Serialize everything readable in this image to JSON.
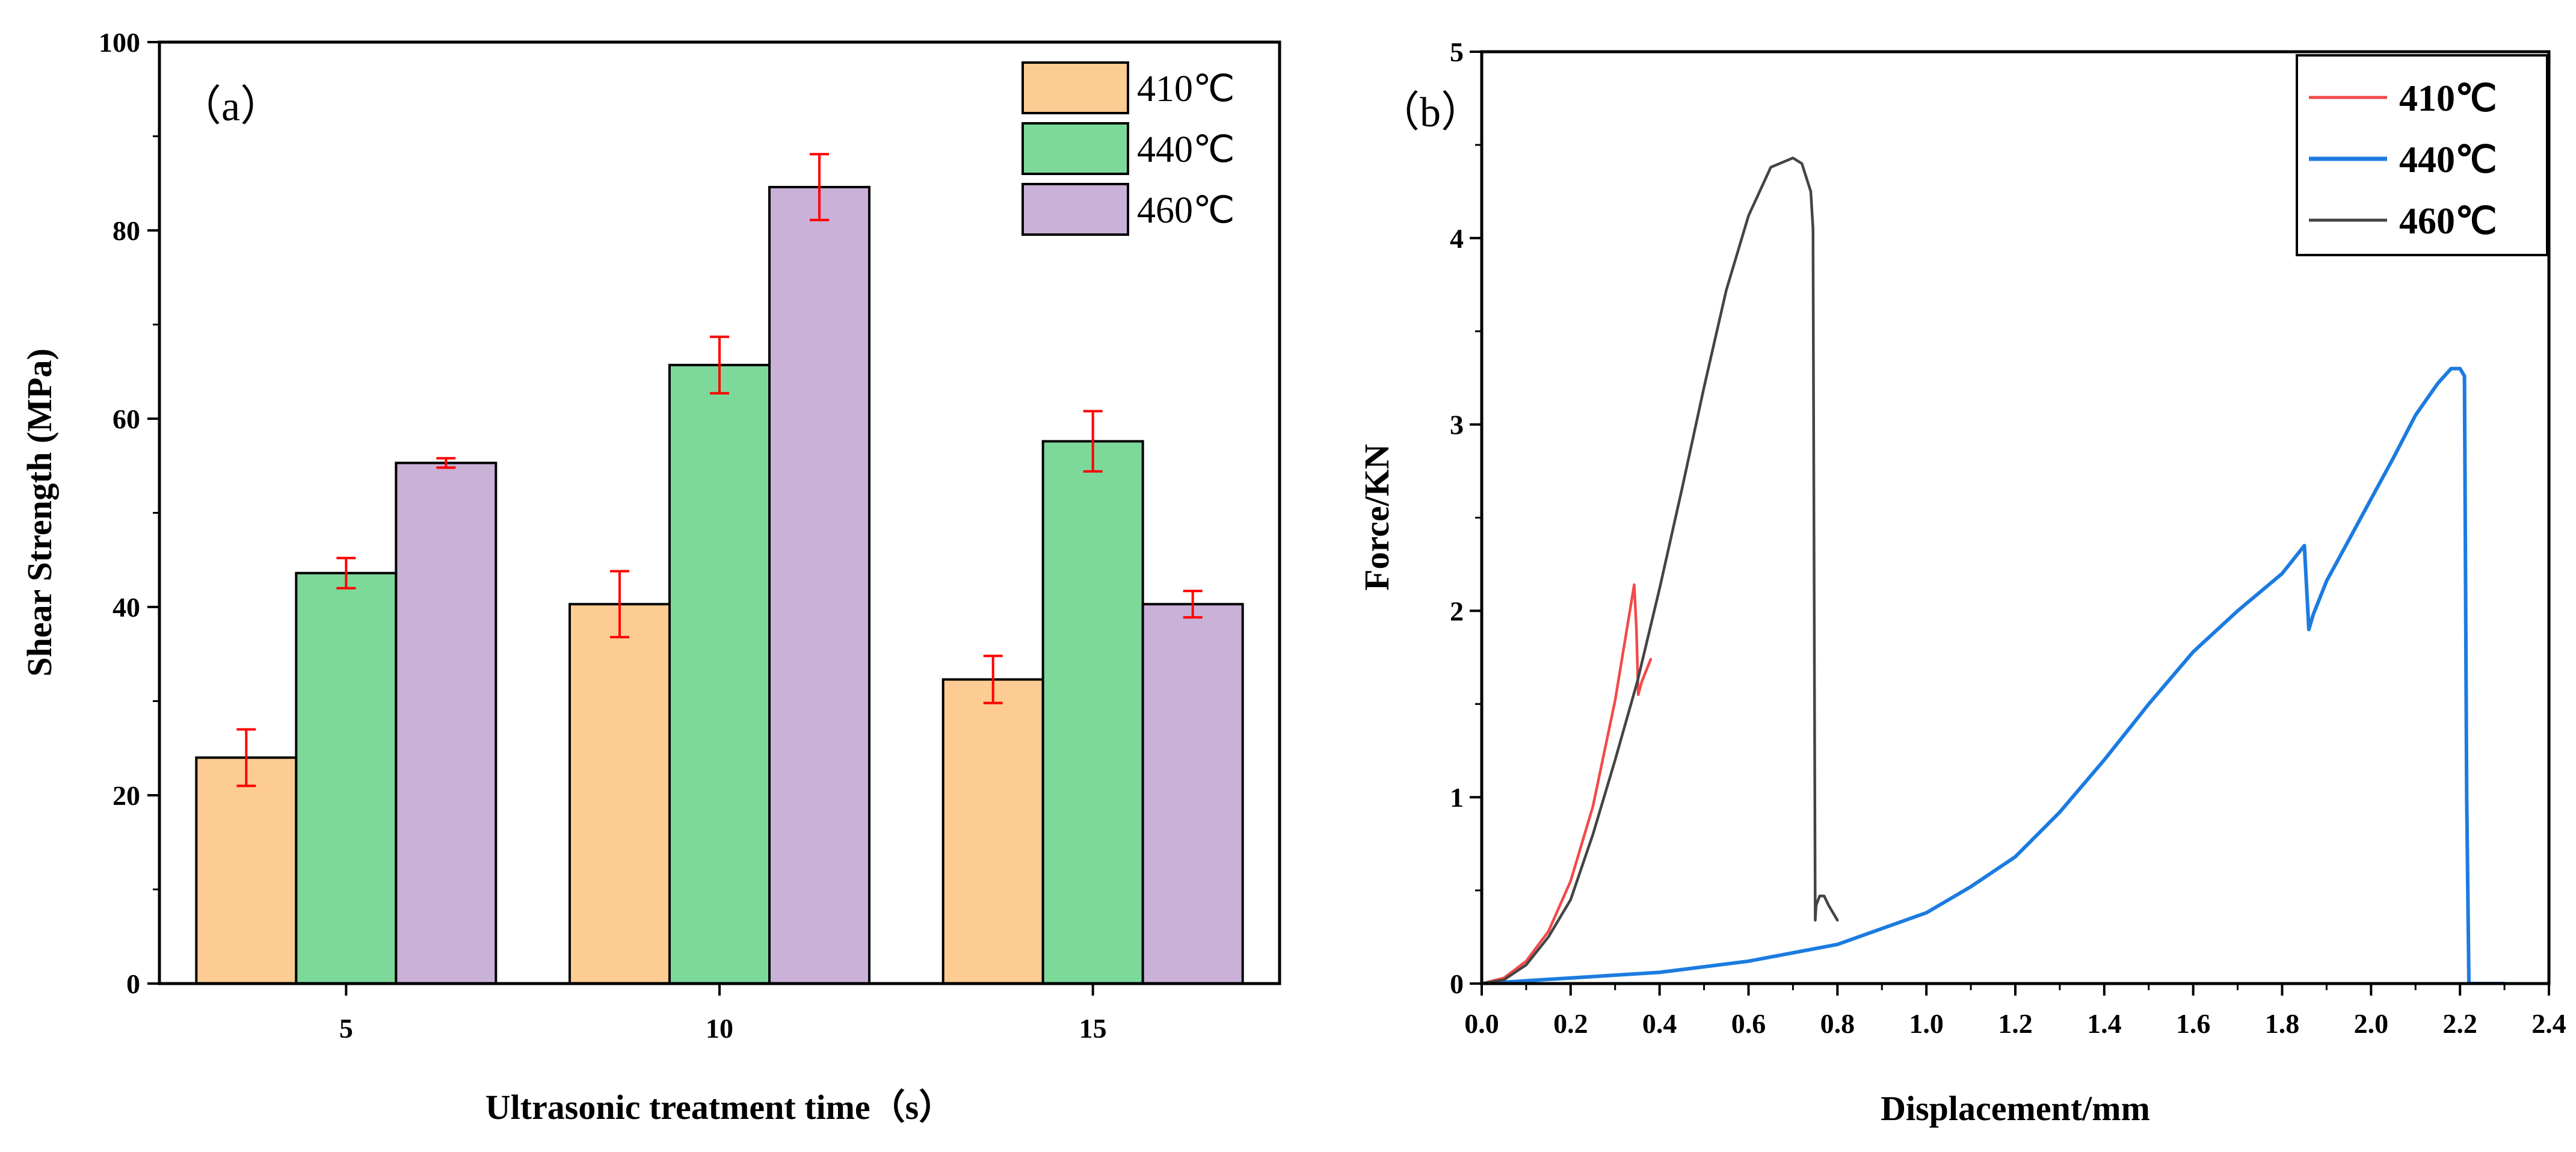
{
  "chart_data": [
    {
      "type": "bar",
      "panel_label": "（a）",
      "title": "",
      "xlabel": "Ultrasonic treatment time（s）",
      "ylabel": "Shear Strength (MPa)",
      "categories": [
        "5",
        "10",
        "15"
      ],
      "ylim": [
        0,
        100
      ],
      "yticks": [
        0,
        20,
        40,
        60,
        80,
        100
      ],
      "series": [
        {
          "name": "410℃",
          "color": "#FCCC92",
          "values": [
            24.0,
            40.3,
            32.3
          ],
          "errors": [
            3.0,
            3.5,
            2.5
          ]
        },
        {
          "name": "440℃",
          "color": "#7DD99A",
          "values": [
            43.6,
            65.7,
            57.6
          ],
          "errors": [
            1.6,
            3.0,
            3.2
          ]
        },
        {
          "name": "460℃",
          "color": "#C9B1D7",
          "values": [
            55.3,
            84.6,
            40.3
          ],
          "errors": [
            0.5,
            3.5,
            1.4
          ]
        }
      ],
      "error_color": "#FF0000",
      "legend_position": "top-right"
    },
    {
      "type": "line",
      "panel_label": "（b）",
      "title": "",
      "xlabel": "Displacement/mm",
      "ylabel": "Force/KN",
      "xlim": [
        0,
        2.4
      ],
      "ylim": [
        0,
        5
      ],
      "xticks": [
        "0.0",
        "0.2",
        "0.4",
        "0.6",
        "0.8",
        "1.0",
        "1.2",
        "1.4",
        "1.6",
        "1.8",
        "2.0",
        "2.2",
        "2.4"
      ],
      "yticks": [
        "0",
        "1",
        "2",
        "3",
        "4",
        "5"
      ],
      "legend_position": "top-right",
      "series": [
        {
          "name": "410℃",
          "color": "#F24A4A",
          "x": [
            0.0,
            0.05,
            0.1,
            0.15,
            0.2,
            0.25,
            0.3,
            0.343,
            0.348,
            0.352,
            0.36,
            0.37,
            0.38
          ],
          "y": [
            0.0,
            0.03,
            0.12,
            0.28,
            0.55,
            0.95,
            1.52,
            2.14,
            1.9,
            1.55,
            1.62,
            1.68,
            1.74
          ]
        },
        {
          "name": "440℃",
          "color": "#1C7BE0",
          "x": [
            0.0,
            0.2,
            0.4,
            0.6,
            0.8,
            1.0,
            1.1,
            1.2,
            1.3,
            1.4,
            1.5,
            1.6,
            1.7,
            1.8,
            1.85,
            1.86,
            1.87,
            1.9,
            1.95,
            2.0,
            2.05,
            2.1,
            2.15,
            2.18,
            2.2,
            2.21,
            2.215,
            2.22,
            2.3
          ],
          "y": [
            0.0,
            0.03,
            0.06,
            0.12,
            0.21,
            0.38,
            0.52,
            0.68,
            0.92,
            1.2,
            1.5,
            1.78,
            2.0,
            2.2,
            2.35,
            1.9,
            1.98,
            2.16,
            2.38,
            2.6,
            2.82,
            3.05,
            3.22,
            3.3,
            3.3,
            3.26,
            1.0,
            0.0,
            0.0
          ]
        },
        {
          "name": "460℃",
          "color": "#444444",
          "x": [
            0.0,
            0.05,
            0.1,
            0.15,
            0.2,
            0.25,
            0.3,
            0.35,
            0.4,
            0.45,
            0.5,
            0.55,
            0.6,
            0.65,
            0.7,
            0.72,
            0.74,
            0.745,
            0.75,
            0.752,
            0.76,
            0.77,
            0.78,
            0.8
          ],
          "y": [
            0.0,
            0.02,
            0.1,
            0.25,
            0.45,
            0.8,
            1.2,
            1.62,
            2.12,
            2.65,
            3.2,
            3.72,
            4.12,
            4.38,
            4.43,
            4.4,
            4.25,
            4.05,
            0.34,
            0.42,
            0.47,
            0.47,
            0.42,
            0.34
          ]
        }
      ]
    }
  ]
}
